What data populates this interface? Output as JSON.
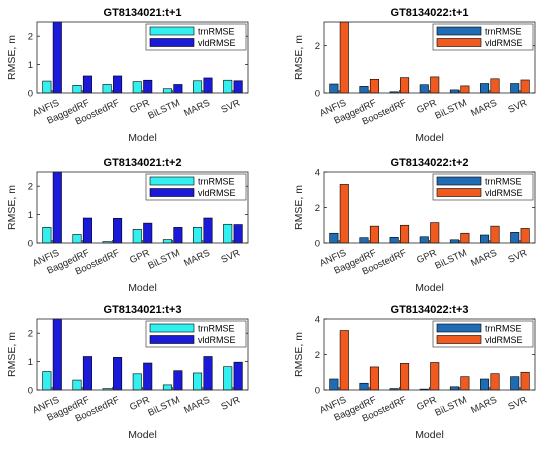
{
  "chart_data": [
    {
      "type": "bar",
      "title": "GT8134021:t+1",
      "xlabel": "Model",
      "ylabel": "RMSE, m",
      "ylim": [
        0,
        2.5
      ],
      "yticks": [
        "0",
        "1",
        "2"
      ],
      "yticks_values": [
        0,
        1,
        2
      ],
      "categories": [
        "ANFIS",
        "BaggedRF",
        "BoostedRF",
        "GPR",
        "BiLSTM",
        "MARS",
        "SVR"
      ],
      "legend_position": "top-right",
      "series": [
        {
          "name": "trnRMSE",
          "color": "#33F0F0",
          "values": [
            0.42,
            0.27,
            0.3,
            0.4,
            0.15,
            0.43,
            0.45
          ]
        },
        {
          "name": "vldRMSE",
          "color": "#1A1AD8",
          "values": [
            2.55,
            0.6,
            0.6,
            0.45,
            0.3,
            0.53,
            0.43
          ]
        }
      ]
    },
    {
      "type": "bar",
      "title": "GT8134022:t+1",
      "xlabel": "Model",
      "ylabel": "RMSE, m",
      "ylim": [
        0,
        3
      ],
      "yticks": [
        "0",
        "2"
      ],
      "yticks_values": [
        0,
        2
      ],
      "categories": [
        "ANFIS",
        "BaggedRF",
        "BoostedRF",
        "GPR",
        "BiLSTM",
        "MARS",
        "SVR"
      ],
      "legend_position": "top-right",
      "series": [
        {
          "name": "trnRMSE",
          "color": "#1F6CB4",
          "values": [
            0.38,
            0.28,
            0.05,
            0.35,
            0.13,
            0.4,
            0.4
          ]
        },
        {
          "name": "vldRMSE",
          "color": "#F05A1E",
          "values": [
            3.1,
            0.58,
            0.65,
            0.68,
            0.3,
            0.6,
            0.55
          ]
        }
      ]
    },
    {
      "type": "bar",
      "title": "GT8134021:t+2",
      "xlabel": "Model",
      "ylabel": "RMSE, m",
      "ylim": [
        0,
        2.5
      ],
      "yticks": [
        "0",
        "1",
        "2"
      ],
      "yticks_values": [
        0,
        1,
        2
      ],
      "categories": [
        "ANFIS",
        "BaggedRF",
        "BoostedRF",
        "GPR",
        "BiLSTM",
        "MARS",
        "SVR"
      ],
      "legend_position": "top-right",
      "series": [
        {
          "name": "trnRMSE",
          "color": "#33F0F0",
          "values": [
            0.55,
            0.3,
            0.05,
            0.48,
            0.12,
            0.55,
            0.66
          ]
        },
        {
          "name": "vldRMSE",
          "color": "#1A1AD8",
          "values": [
            2.55,
            0.88,
            0.87,
            0.7,
            0.55,
            0.88,
            0.65
          ]
        }
      ]
    },
    {
      "type": "bar",
      "title": "GT8134022:t+2",
      "xlabel": "Model",
      "ylabel": "RMSE, m",
      "ylim": [
        0,
        4
      ],
      "yticks": [
        "0",
        "2",
        "4"
      ],
      "yticks_values": [
        0,
        2,
        4
      ],
      "categories": [
        "ANFIS",
        "BaggedRF",
        "BoostedRF",
        "GPR",
        "BiLSTM",
        "MARS",
        "SVR"
      ],
      "legend_position": "top-right",
      "series": [
        {
          "name": "trnRMSE",
          "color": "#1F6CB4",
          "values": [
            0.55,
            0.3,
            0.32,
            0.35,
            0.18,
            0.45,
            0.6
          ]
        },
        {
          "name": "vldRMSE",
          "color": "#F05A1E",
          "values": [
            3.3,
            0.95,
            1.0,
            1.15,
            0.55,
            0.95,
            0.82
          ]
        }
      ]
    },
    {
      "type": "bar",
      "title": "GT8134021:t+3",
      "xlabel": "Model",
      "ylabel": "RMSE, m",
      "ylim": [
        0,
        2.5
      ],
      "yticks": [
        "0",
        "1",
        "2"
      ],
      "yticks_values": [
        0,
        1,
        2
      ],
      "categories": [
        "ANFIS",
        "BaggedRF",
        "BoostedRF",
        "GPR",
        "BiLSTM",
        "MARS",
        "SVR"
      ],
      "legend_position": "top-right",
      "series": [
        {
          "name": "trnRMSE",
          "color": "#33F0F0",
          "values": [
            0.65,
            0.35,
            0.05,
            0.57,
            0.18,
            0.6,
            0.82
          ]
        },
        {
          "name": "vldRMSE",
          "color": "#1A1AD8",
          "values": [
            2.55,
            1.18,
            1.15,
            0.95,
            0.68,
            1.18,
            0.98
          ]
        }
      ]
    },
    {
      "type": "bar",
      "title": "GT8134022:t+3",
      "xlabel": "Model",
      "ylabel": "RMSE, m",
      "ylim": [
        0,
        4
      ],
      "yticks": [
        "0",
        "2",
        "4"
      ],
      "yticks_values": [
        0,
        2,
        4
      ],
      "categories": [
        "ANFIS",
        "BaggedRF",
        "BoostedRF",
        "GPR",
        "BiLSTM",
        "MARS",
        "SVR"
      ],
      "legend_position": "top-right",
      "series": [
        {
          "name": "trnRMSE",
          "color": "#1F6CB4",
          "values": [
            0.62,
            0.38,
            0.08,
            0.05,
            0.18,
            0.62,
            0.75
          ]
        },
        {
          "name": "vldRMSE",
          "color": "#F05A1E",
          "values": [
            3.35,
            1.3,
            1.5,
            1.55,
            0.75,
            0.92,
            1.0
          ]
        }
      ]
    }
  ]
}
